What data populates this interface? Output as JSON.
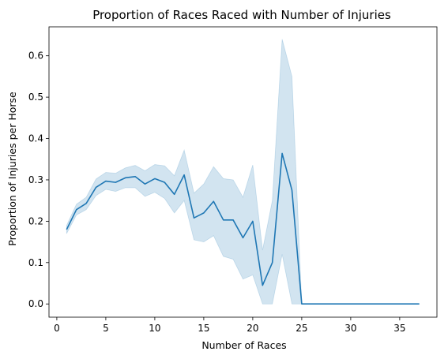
{
  "chart_data": {
    "type": "line",
    "title": "Proportion of Races Raced with Number of Injuries",
    "xlabel": "Number of Races",
    "ylabel": "Proportion of Injuries per Horse",
    "xlim": [
      -0.8,
      38.8
    ],
    "ylim": [
      -0.032,
      0.67
    ],
    "xticks": [
      0,
      5,
      10,
      15,
      20,
      25,
      30,
      35
    ],
    "yticks": [
      0.0,
      0.1,
      0.2,
      0.3,
      0.4,
      0.5,
      0.6
    ],
    "ytick_labels": [
      "0.0",
      "0.1",
      "0.2",
      "0.3",
      "0.4",
      "0.5",
      "0.6"
    ],
    "grid": false,
    "legend": "none",
    "line_color": "#1f77b4",
    "band_color": "#1f77b4",
    "band_opacity": 0.2,
    "series": [
      {
        "x": [
          1,
          2,
          3,
          4,
          5,
          6,
          7,
          8,
          9,
          10,
          11,
          12,
          13,
          14,
          15,
          16,
          17,
          18,
          19,
          20,
          21,
          22,
          23,
          24,
          25,
          26,
          27,
          28,
          29,
          30,
          31,
          32,
          33,
          34,
          35,
          36,
          37
        ],
        "y": [
          0.18,
          0.228,
          0.243,
          0.282,
          0.297,
          0.294,
          0.305,
          0.308,
          0.29,
          0.303,
          0.294,
          0.265,
          0.312,
          0.208,
          0.22,
          0.248,
          0.203,
          0.203,
          0.16,
          0.2,
          0.045,
          0.1,
          0.364,
          0.275,
          0.0,
          0.0,
          0.0,
          0.0,
          0.0,
          0.0,
          0.0,
          0.0,
          0.0,
          0.0,
          0.0,
          0.0,
          0.0
        ],
        "ci_low": [
          0.17,
          0.215,
          0.228,
          0.262,
          0.277,
          0.272,
          0.281,
          0.281,
          0.26,
          0.27,
          0.255,
          0.22,
          0.25,
          0.155,
          0.15,
          0.165,
          0.115,
          0.108,
          0.06,
          0.07,
          0.0,
          0.0,
          0.12,
          0.0,
          0.0,
          0.0,
          0.0,
          0.0,
          0.0,
          0.0,
          0.0,
          0.0,
          0.0,
          0.0,
          0.0,
          0.0,
          0.0
        ],
        "ci_high": [
          0.19,
          0.241,
          0.258,
          0.302,
          0.318,
          0.316,
          0.329,
          0.335,
          0.322,
          0.337,
          0.334,
          0.31,
          0.372,
          0.268,
          0.29,
          0.332,
          0.303,
          0.3,
          0.258,
          0.336,
          0.13,
          0.25,
          0.64,
          0.55,
          0.0,
          0.0,
          0.0,
          0.0,
          0.0,
          0.0,
          0.0,
          0.0,
          0.0,
          0.0,
          0.0,
          0.0,
          0.0
        ]
      }
    ]
  }
}
